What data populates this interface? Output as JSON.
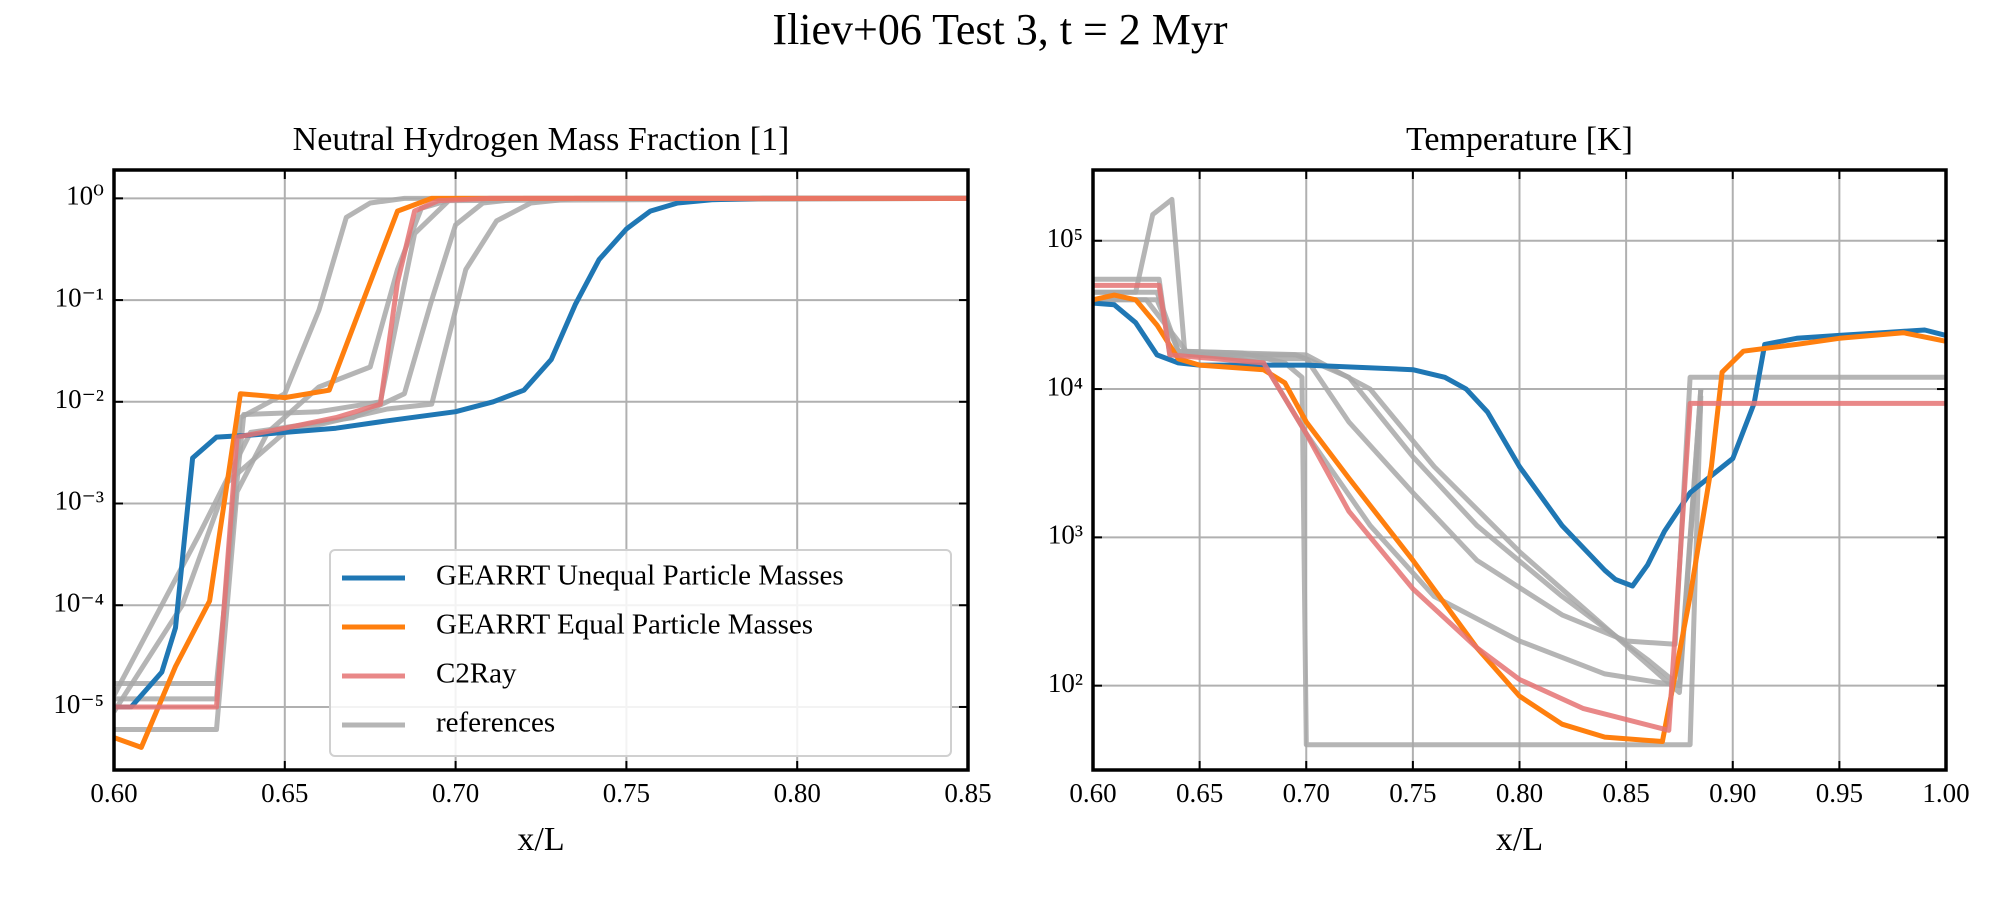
{
  "title": "Iliev+06 Test 3, t = 2 Myr",
  "chart_data": [
    {
      "type": "line",
      "title": "Neutral Hydrogen Mass Fraction [1]",
      "x_label": "x/L",
      "xlim": [
        0.6,
        0.85
      ],
      "xticks": [
        {
          "value": 0.6,
          "label": "0.60"
        },
        0.65,
        {
          "value": 0.7,
          "label": "0.70"
        },
        0.75,
        {
          "value": 0.8,
          "label": "0.80"
        },
        0.85
      ],
      "ylim": [
        2.4e-06,
        1.9
      ],
      "y_log": true,
      "yticks": [
        {
          "value": 1e-05,
          "label": "10⁻⁵"
        },
        {
          "value": 0.0001,
          "label": "10⁻⁴"
        },
        {
          "value": 0.001,
          "label": "10⁻³"
        },
        {
          "value": 0.01,
          "label": "10⁻²"
        },
        {
          "value": 0.1,
          "label": "10⁻¹"
        },
        {
          "value": 1,
          "label": "10⁰"
        }
      ],
      "grid": true,
      "legend": "lower right",
      "series": [
        {
          "name": "GEARRT Unequal Particle Masses",
          "color": "#1f77b4",
          "x": [
            0.6,
            0.605,
            0.614,
            0.618,
            0.623,
            0.63,
            0.64,
            0.65,
            0.665,
            0.68,
            0.7,
            0.711,
            0.72,
            0.728,
            0.735,
            0.742,
            0.75,
            0.757,
            0.765,
            0.775,
            0.79,
            0.85
          ],
          "values": [
            1e-05,
            1e-05,
            2.2e-05,
            6e-05,
            0.0028,
            0.0045,
            0.0047,
            0.005,
            0.0055,
            0.0065,
            0.008,
            0.01,
            0.013,
            0.026,
            0.09,
            0.25,
            0.5,
            0.75,
            0.9,
            0.97,
            1,
            1
          ]
        },
        {
          "name": "GEARRT Equal Particle Masses",
          "color": "#ff7f0e",
          "x": [
            0.6,
            0.608,
            0.618,
            0.628,
            0.637,
            0.65,
            0.663,
            0.673,
            0.683,
            0.693,
            0.85
          ],
          "values": [
            5e-06,
            4e-06,
            2.5e-05,
            0.00011,
            0.012,
            0.011,
            0.013,
            0.1,
            0.75,
            1,
            1
          ]
        },
        {
          "name": "C2Ray",
          "color": "#e57373",
          "x": [
            0.6,
            0.63,
            0.636,
            0.65,
            0.665,
            0.678,
            0.683,
            0.688,
            0.695,
            0.71,
            0.85
          ],
          "values": [
            1e-05,
            1e-05,
            0.0045,
            0.0055,
            0.007,
            0.0095,
            0.15,
            0.75,
            0.95,
            1,
            1
          ]
        },
        {
          "name": "references",
          "color": "#a8a8a8",
          "curves": [
            {
              "x": [
                0.6,
                0.63,
                0.637,
                0.65,
                0.66,
                0.668,
                0.675,
                0.685,
                0.85
              ],
              "values": [
                1.2e-05,
                1.2e-05,
                0.007,
                0.012,
                0.08,
                0.65,
                0.9,
                1,
                1
              ]
            },
            {
              "x": [
                0.6,
                0.63,
                0.636,
                0.645,
                0.66,
                0.675,
                0.683,
                0.69,
                0.7,
                0.85
              ],
              "values": [
                6e-06,
                6e-06,
                0.0013,
                0.005,
                0.014,
                0.022,
                0.2,
                0.8,
                1,
                1
              ]
            },
            {
              "x": [
                0.6,
                0.63,
                0.638,
                0.66,
                0.678,
                0.688,
                0.698,
                0.85
              ],
              "values": [
                1.7e-05,
                1.7e-05,
                0.0075,
                0.008,
                0.01,
                0.45,
                0.95,
                1
              ]
            },
            {
              "x": [
                0.6,
                0.62,
                0.633,
                0.65,
                0.68,
                0.693,
                0.703,
                0.712,
                0.722,
                0.735,
                0.85
              ],
              "values": [
                9e-06,
                0.0001,
                0.0016,
                0.005,
                0.0085,
                0.0095,
                0.2,
                0.6,
                0.9,
                1,
                1
              ]
            },
            {
              "x": [
                0.6,
                0.625,
                0.64,
                0.67,
                0.685,
                0.693,
                0.7,
                0.708,
                0.72,
                0.85
              ],
              "values": [
                1.3e-05,
                0.0005,
                0.005,
                0.007,
                0.012,
                0.1,
                0.55,
                0.9,
                1,
                1
              ]
            }
          ]
        }
      ]
    },
    {
      "type": "line",
      "title": "Temperature [K]",
      "x_label": "x/L",
      "xlim": [
        0.6,
        1.0
      ],
      "xticks": [
        {
          "value": 0.6,
          "label": "0.60"
        },
        0.65,
        {
          "value": 0.7,
          "label": "0.70"
        },
        0.75,
        {
          "value": 0.8,
          "label": "0.80"
        },
        0.85,
        {
          "value": 0.9,
          "label": "0.90"
        },
        0.95,
        {
          "value": 1.0,
          "label": "1.00"
        }
      ],
      "ylim": [
        27,
        300000
      ],
      "y_log": true,
      "yticks": [
        {
          "value": 100,
          "label": "10²"
        },
        {
          "value": 1000,
          "label": "10³"
        },
        {
          "value": 10000,
          "label": "10⁴"
        },
        {
          "value": 100000,
          "label": "10⁵"
        }
      ],
      "grid": true,
      "series": [
        {
          "name": "GEARRT Unequal Particle Masses",
          "color": "#1f77b4",
          "x": [
            0.6,
            0.61,
            0.62,
            0.63,
            0.64,
            0.65,
            0.7,
            0.75,
            0.765,
            0.775,
            0.785,
            0.8,
            0.82,
            0.84,
            0.845,
            0.853,
            0.86,
            0.868,
            0.88,
            0.9,
            0.91,
            0.915,
            0.93,
            0.95,
            0.97,
            0.99,
            1.0
          ],
          "values": [
            38000,
            37000,
            28000,
            17000,
            15000,
            14500,
            14500,
            13500,
            12000,
            10000,
            7000,
            3000,
            1200,
            600,
            520,
            470,
            650,
            1100,
            2000,
            3400,
            8000,
            20000,
            22000,
            23000,
            24000,
            25000,
            23000
          ]
        },
        {
          "name": "GEARRT Equal Particle Masses",
          "color": "#ff7f0e",
          "x": [
            0.6,
            0.61,
            0.62,
            0.63,
            0.64,
            0.65,
            0.68,
            0.69,
            0.7,
            0.72,
            0.75,
            0.78,
            0.8,
            0.82,
            0.84,
            0.867,
            0.88,
            0.89,
            0.895,
            0.905,
            0.93,
            0.95,
            0.98,
            1.0
          ],
          "values": [
            40000,
            43000,
            40000,
            27000,
            16000,
            14500,
            13500,
            11000,
            6000,
            2500,
            700,
            180,
            85,
            55,
            45,
            42,
            400,
            3000,
            13000,
            18000,
            20000,
            22000,
            24000,
            21000
          ]
        },
        {
          "name": "C2Ray",
          "color": "#e57373",
          "x": [
            0.6,
            0.631,
            0.636,
            0.68,
            0.7,
            0.72,
            0.75,
            0.78,
            0.8,
            0.83,
            0.87,
            0.88,
            1.0
          ],
          "values": [
            50000,
            50000,
            17000,
            15000,
            5000,
            1500,
            450,
            180,
            110,
            70,
            50,
            8000,
            8000
          ]
        },
        {
          "name": "references",
          "color": "#a8a8a8",
          "curves": [
            {
              "x": [
                0.6,
                0.631,
                0.636,
                0.695,
                0.7,
                0.72,
                0.75,
                0.78,
                0.82,
                0.85,
                0.873,
                0.88,
                1.0
              ],
              "values": [
                55000,
                55000,
                17000,
                17000,
                16000,
                6000,
                2000,
                700,
                300,
                200,
                190,
                12000,
                12000
              ]
            },
            {
              "x": [
                0.6,
                0.62,
                0.628,
                0.637,
                0.643,
                0.67,
                0.69,
                0.698,
                0.7,
                0.88,
                0.885
              ],
              "values": [
                45000,
                45000,
                150000,
                190000,
                18000,
                17500,
                15000,
                12000,
                40,
                40,
                9000
              ]
            },
            {
              "x": [
                0.6,
                0.625,
                0.645,
                0.68,
                0.7,
                0.72,
                0.75,
                0.78,
                0.82,
                0.86,
                0.875,
                0.885
              ],
              "values": [
                40000,
                40000,
                17000,
                16000,
                16000,
                12000,
                3500,
                1200,
                400,
                150,
                100,
                8000
              ]
            },
            {
              "x": [
                0.6,
                0.63,
                0.64,
                0.7,
                0.73,
                0.76,
                0.8,
                0.84,
                0.875,
                0.885
              ],
              "values": [
                45000,
                45000,
                18000,
                17000,
                10000,
                3000,
                800,
                250,
                90,
                10000
              ]
            },
            {
              "x": [
                0.6,
                0.63,
                0.64,
                0.68,
                0.7,
                0.73,
                0.76,
                0.8,
                0.84,
                0.875,
                0.885
              ],
              "values": [
                40000,
                40000,
                18000,
                15000,
                5000,
                1200,
                400,
                200,
                120,
                100,
                10000
              ]
            }
          ]
        }
      ]
    }
  ]
}
